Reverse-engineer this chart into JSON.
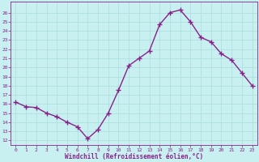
{
  "x": [
    0,
    1,
    2,
    3,
    4,
    5,
    6,
    7,
    8,
    9,
    10,
    11,
    12,
    13,
    14,
    15,
    16,
    17,
    18,
    19,
    20,
    21,
    22,
    23
  ],
  "y": [
    16.2,
    15.7,
    15.6,
    15.0,
    14.6,
    14.0,
    13.5,
    12.2,
    13.2,
    15.0,
    17.5,
    20.2,
    21.0,
    21.8,
    24.7,
    26.0,
    26.3,
    25.0,
    23.3,
    22.8,
    21.5,
    20.8,
    19.4,
    18.0
  ],
  "line_color": "#882288",
  "marker": "+",
  "markersize": 4,
  "markeredgewidth": 1.0,
  "linewidth": 1.0,
  "background_color": "#c8f0f0",
  "grid_color": "#aadddd",
  "xlabel": "Windchill (Refroidissement éolien,°C)",
  "xlabel_color": "#882288",
  "tick_color": "#882288",
  "ylabel_ticks": [
    12,
    13,
    14,
    15,
    16,
    17,
    18,
    19,
    20,
    21,
    22,
    23,
    24,
    25,
    26
  ],
  "ylim": [
    11.5,
    27.2
  ],
  "xlim": [
    -0.5,
    23.5
  ],
  "figsize": [
    3.2,
    2.0
  ],
  "dpi": 100
}
